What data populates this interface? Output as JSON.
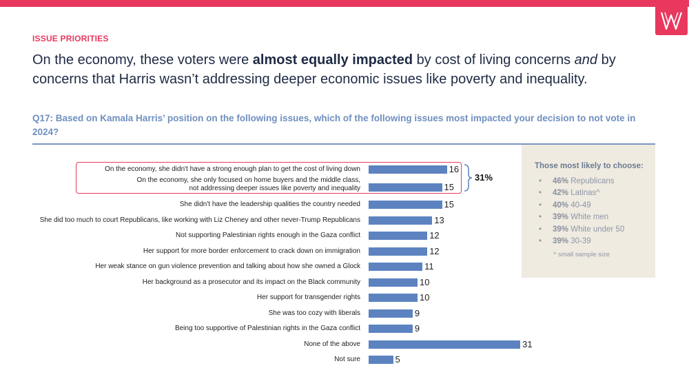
{
  "header": {
    "section_label": "ISSUE PRIORITIES",
    "headline_part1": "On the economy, these voters were ",
    "headline_bold": "almost equally impacted",
    "headline_part2": " by cost of living concerns ",
    "headline_italic": "and",
    "headline_part3": " by concerns that Harris wasn’t addressing deeper economic issues like poverty and inequality.",
    "question": "Q17: Based on Kamala Harris’ position on the following issues, which of the following issues most impacted your decision to not vote in 2024?"
  },
  "brand": {
    "accent": "#e8385e",
    "bar_color": "#5c83c0",
    "panel_bg": "#efebe1"
  },
  "chart_data": {
    "type": "bar",
    "orientation": "horizontal",
    "categories": [
      "On the economy, she didn't have a strong enough plan to get the cost of living down",
      "On the economy, she only focused on home buyers and the middle class,\nnot addressing deeper issues like poverty and inequality",
      "She didn't have the leadership qualities the country needed",
      "She did too much to court Republicans, like working with Liz Cheney and other never-Trump Republicans",
      "Not supporting Palestinian rights enough in the Gaza conflict",
      "Her support for more border enforcement to crack down on immigration",
      "Her weak stance on gun violence prevention and talking about how she owned a Glock",
      "Her background as a prosecutor and its impact on the Black community",
      "Her support for transgender rights",
      "She was too cozy with liberals",
      "Being too supportive of Palestinian rights in the Gaza conflict",
      "None of the above",
      "Not sure"
    ],
    "values": [
      16,
      15,
      15,
      13,
      12,
      12,
      11,
      10,
      10,
      9,
      9,
      31,
      5
    ],
    "xlim": [
      0,
      31
    ],
    "annotation": {
      "label": "31%",
      "applies_to": [
        0,
        1
      ]
    }
  },
  "panel": {
    "title": "Those most likely to choose:",
    "items": [
      {
        "pct": "46%",
        "label": "Republicans"
      },
      {
        "pct": "42%",
        "label": "Latinas^"
      },
      {
        "pct": "40%",
        "label": "40-49"
      },
      {
        "pct": "39%",
        "label": "White men"
      },
      {
        "pct": "39%",
        "label": "White under 50"
      },
      {
        "pct": "39%",
        "label": "30-39"
      }
    ],
    "note": "^ small sample size"
  }
}
